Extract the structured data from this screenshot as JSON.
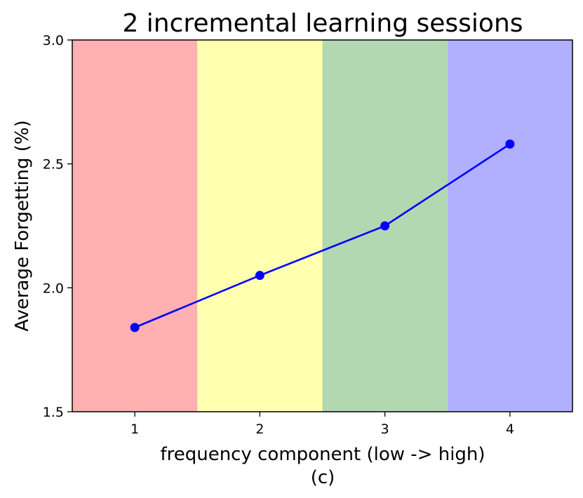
{
  "chart_data": {
    "type": "line",
    "title": "2 incremental learning sessions",
    "xlabel": "frequency component (low -> high)",
    "caption": "(c)",
    "ylabel": "Average Forgetting (%)",
    "xlim": [
      0.5,
      4.5
    ],
    "ylim": [
      1.5,
      3.0
    ],
    "x_ticks": [
      1,
      2,
      3,
      4
    ],
    "x_tick_labels": [
      "1",
      "2",
      "3",
      "4"
    ],
    "y_ticks": [
      1.5,
      2.0,
      2.5,
      3.0
    ],
    "y_tick_labels": [
      "1.5",
      "2.0",
      "2.5",
      "3.0"
    ],
    "grid": false,
    "bands": [
      {
        "from": 0.5,
        "to": 1.5,
        "color": "#ffb0b0"
      },
      {
        "from": 1.5,
        "to": 2.5,
        "color": "#ffffb0"
      },
      {
        "from": 2.5,
        "to": 3.5,
        "color": "#b2d8b2"
      },
      {
        "from": 3.5,
        "to": 4.5,
        "color": "#b0b0ff"
      }
    ],
    "series": [
      {
        "x": [
          1,
          2,
          3,
          4
        ],
        "values": [
          1.84,
          2.05,
          2.25,
          2.58
        ],
        "color": "#0000ff",
        "marker": "circle"
      }
    ]
  }
}
